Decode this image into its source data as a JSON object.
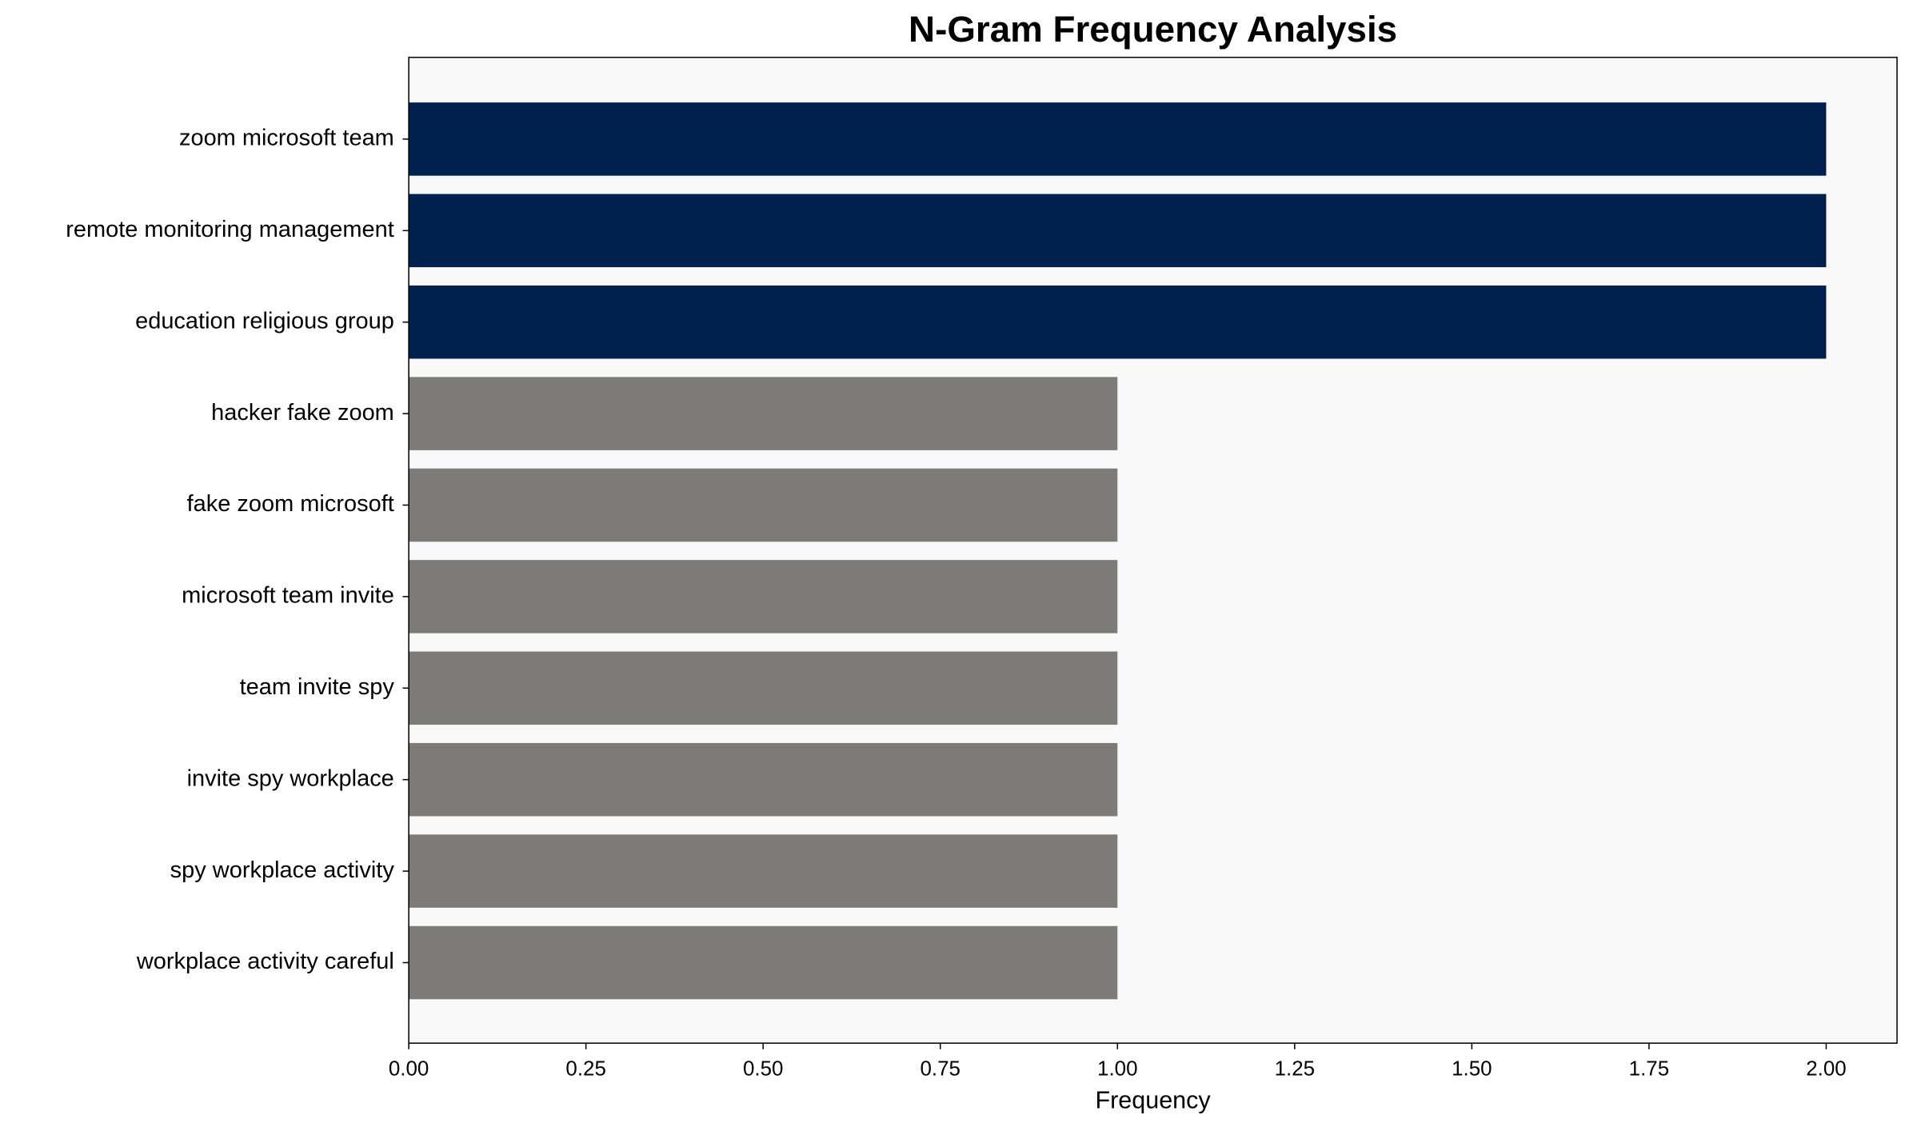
{
  "chart_data": {
    "type": "barh",
    "title": "N-Gram Frequency Analysis",
    "xlabel": "Frequency",
    "categories": [
      "zoom microsoft team",
      "remote monitoring management",
      "education religious group",
      "hacker fake zoom",
      "fake zoom microsoft",
      "microsoft team invite",
      "team invite spy",
      "invite spy workplace",
      "spy workplace activity",
      "workplace activity careful"
    ],
    "values": [
      2,
      2,
      2,
      1,
      1,
      1,
      1,
      1,
      1,
      1
    ],
    "colors": [
      "#00204e",
      "#00204e",
      "#00204e",
      "#7c7b78",
      "#7c7b78",
      "#7c7b78",
      "#7c7b78",
      "#7c7b78",
      "#7c7b78",
      "#7c7b78"
    ],
    "xlim": [
      0,
      2.1
    ],
    "xticks": [
      {
        "value": 0,
        "label": "0.00"
      },
      {
        "value": 0.25,
        "label": "0.25"
      },
      {
        "value": 0.5,
        "label": "0.50"
      },
      {
        "value": 0.75,
        "label": "0.75"
      },
      {
        "value": 1,
        "label": "1.00"
      },
      {
        "value": 1.25,
        "label": "1.25"
      },
      {
        "value": 1.5,
        "label": "1.50"
      },
      {
        "value": 1.75,
        "label": "1.75"
      },
      {
        "value": 2,
        "label": "2.00"
      }
    ],
    "background": "#f8f8f8",
    "grid": false
  }
}
